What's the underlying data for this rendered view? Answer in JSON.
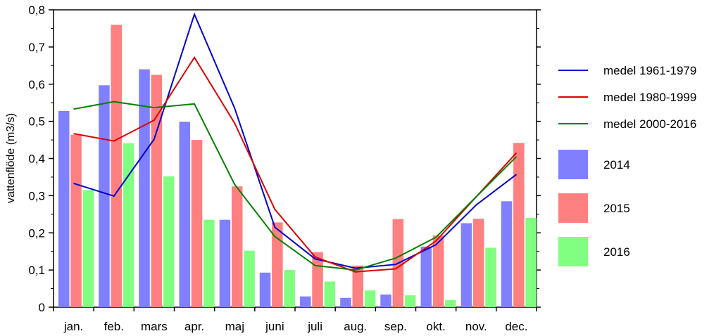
{
  "chart_data": {
    "type": "bar",
    "title": "",
    "xlabel": "",
    "ylabel": "vattenflöde (m3/s)",
    "ylim": [
      0,
      0.8
    ],
    "yticks": [
      "0",
      "0,1",
      "0,2",
      "0,3",
      "0,4",
      "0,5",
      "0,6",
      "0,7",
      "0,8"
    ],
    "yticks_values": [
      0,
      0.1,
      0.2,
      0.3,
      0.4,
      0.5,
      0.6,
      0.7,
      0.8
    ],
    "categories": [
      "jan.",
      "feb.",
      "mars",
      "apr.",
      "maj",
      "juni",
      "juli",
      "aug.",
      "sep.",
      "okt.",
      "nov.",
      "dec."
    ],
    "bar_series": [
      {
        "name": "2014",
        "color": "#8080ff",
        "values": [
          0.528,
          0.597,
          0.64,
          0.499,
          0.235,
          0.093,
          0.029,
          0.025,
          0.034,
          0.163,
          0.226,
          0.285
        ]
      },
      {
        "name": "2015",
        "color": "#ff8080",
        "values": [
          0.464,
          0.76,
          0.625,
          0.45,
          0.325,
          0.228,
          0.148,
          0.112,
          0.237,
          0.193,
          0.238,
          0.442
        ]
      },
      {
        "name": "2016",
        "color": "#80ff80",
        "values": [
          0.315,
          0.441,
          0.352,
          0.235,
          0.152,
          0.1,
          0.069,
          0.045,
          0.032,
          0.019,
          0.16,
          0.24
        ]
      }
    ],
    "line_series": [
      {
        "name": "medel 1961-1979",
        "color": "#0000cc",
        "values": [
          0.333,
          0.299,
          0.452,
          0.788,
          0.535,
          0.215,
          0.13,
          0.105,
          0.115,
          0.168,
          0.275,
          0.357
        ]
      },
      {
        "name": "medel 1980-1999",
        "color": "#dd0000",
        "values": [
          0.467,
          0.447,
          0.503,
          0.672,
          0.495,
          0.263,
          0.135,
          0.095,
          0.103,
          0.178,
          0.297,
          0.415
        ]
      },
      {
        "name": "medel 2000-2016",
        "color": "#008000",
        "values": [
          0.533,
          0.553,
          0.537,
          0.547,
          0.33,
          0.19,
          0.112,
          0.1,
          0.132,
          0.188,
          0.297,
          0.405
        ]
      }
    ],
    "grid": false,
    "legend_position": "right"
  }
}
